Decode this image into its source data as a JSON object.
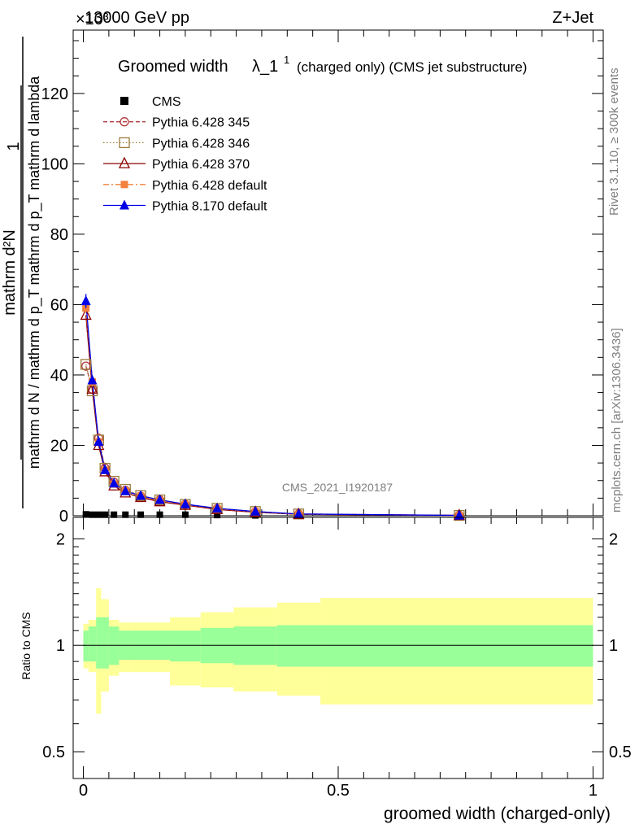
{
  "header": {
    "left": "13000 GeV pp",
    "right": "Z+Jet",
    "exponent": "×10³"
  },
  "side": {
    "rivet": "Rivet 3.1.10, ≥ 300k events",
    "mcplots": "mcplots.cern.ch [arXiv:1306.3436]"
  },
  "chart_data": {
    "title_main": "Groomed width",
    "title_lambda": "λ_1",
    "title_sup": "1",
    "title_rest": "(charged only) (CMS jet substructure)",
    "analysis_label": "CMS_2021_I1920187",
    "upper": {
      "type": "line",
      "ylabel_num": "1",
      "ylabel_den": "mathrm d N / mathrm d p_T mathrm d p_T mathrm d lambda",
      "ylabel_top": "mathrm d²N",
      "xlim": [
        -0.02,
        1.02
      ],
      "ylim": [
        0,
        138
      ],
      "yticks": [
        0,
        20,
        40,
        60,
        80,
        100,
        120
      ],
      "ytick_labels": [
        "0",
        "20",
        "40",
        "60",
        "80",
        "100",
        "120"
      ],
      "x": [
        0.005,
        0.0175,
        0.03,
        0.0425,
        0.06,
        0.0825,
        0.1125,
        0.15,
        0.2,
        0.2625,
        0.3375,
        0.4225,
        0.7375
      ],
      "series": [
        {
          "name": "CMS",
          "style": "data",
          "color": "#000000",
          "values": [
            0.4,
            0.3,
            0.3,
            0.3,
            0.3,
            0.3,
            0.3,
            0.3,
            0.3,
            0.2,
            0.1,
            0.05,
            0.02
          ]
        },
        {
          "name": "Pythia 6.428 345",
          "style": "circle-open-dashed",
          "color": "#b4383c",
          "values": [
            42.5,
            36,
            22,
            13.5,
            9.5,
            7.2,
            5.5,
            4.5,
            3.2,
            2.0,
            1.1,
            0.5,
            0.1
          ]
        },
        {
          "name": "Pythia 6.428 346",
          "style": "square-open-dotted",
          "color": "#9b7b3a",
          "values": [
            43,
            35.5,
            21.5,
            13.5,
            9.8,
            7.5,
            5.7,
            4.5,
            3.2,
            2.1,
            1.2,
            0.5,
            0.1
          ]
        },
        {
          "name": "Pythia 6.428 370",
          "style": "triangle-open-solid",
          "color": "#8b0000",
          "values": [
            57,
            36,
            20,
            12.5,
            8.5,
            6.5,
            5.2,
            4.0,
            3.0,
            1.8,
            1.0,
            0.4,
            0.1
          ]
        },
        {
          "name": "Pythia 6.428 default",
          "style": "square-filled-dashdot",
          "color": "#f4813c",
          "values": [
            59,
            38,
            21,
            13,
            9,
            7,
            5.6,
            4.3,
            3.2,
            2.0,
            1.1,
            0.45,
            0.1
          ]
        },
        {
          "name": "Pythia 8.170 default",
          "style": "triangle-filled-solid",
          "color": "#0000e6",
          "values": [
            61,
            38.5,
            21,
            13,
            9.2,
            7,
            5.7,
            4.5,
            3.3,
            2.1,
            1.2,
            0.5,
            0.1
          ]
        }
      ]
    },
    "ratio": {
      "type": "area",
      "ylabel": "Ratio to CMS",
      "xlabel": "groomed width (charged-only)",
      "xlim": [
        -0.02,
        1.02
      ],
      "ylim": [
        0.42,
        2.3
      ],
      "log_y": true,
      "yticks": [
        0.5,
        1,
        2
      ],
      "ytick_labels": [
        "0.5",
        "1",
        "2"
      ],
      "xticks": [
        0,
        0.5,
        1
      ],
      "xtick_labels": [
        "0",
        "0.5",
        "1"
      ],
      "bin_edges": [
        0.0,
        0.01,
        0.025,
        0.035,
        0.05,
        0.07,
        0.095,
        0.13,
        0.17,
        0.23,
        0.295,
        0.38,
        0.465,
        1.0
      ],
      "inner_band": {
        "name": "stat",
        "color": "#99ff99",
        "low": [
          0.9,
          0.9,
          0.86,
          0.86,
          0.88,
          0.91,
          0.91,
          0.91,
          0.9,
          0.89,
          0.88,
          0.87,
          0.87
        ],
        "high": [
          1.1,
          1.13,
          1.2,
          1.2,
          1.13,
          1.1,
          1.1,
          1.1,
          1.1,
          1.12,
          1.13,
          1.14,
          1.14
        ]
      },
      "outer_band": {
        "name": "total",
        "color": "#ffff99",
        "low": [
          0.86,
          0.84,
          0.64,
          0.74,
          0.82,
          0.84,
          0.84,
          0.84,
          0.77,
          0.76,
          0.74,
          0.72,
          0.68
        ],
        "high": [
          1.15,
          1.18,
          1.45,
          1.35,
          1.18,
          1.16,
          1.16,
          1.16,
          1.2,
          1.24,
          1.28,
          1.32,
          1.36
        ]
      }
    }
  }
}
